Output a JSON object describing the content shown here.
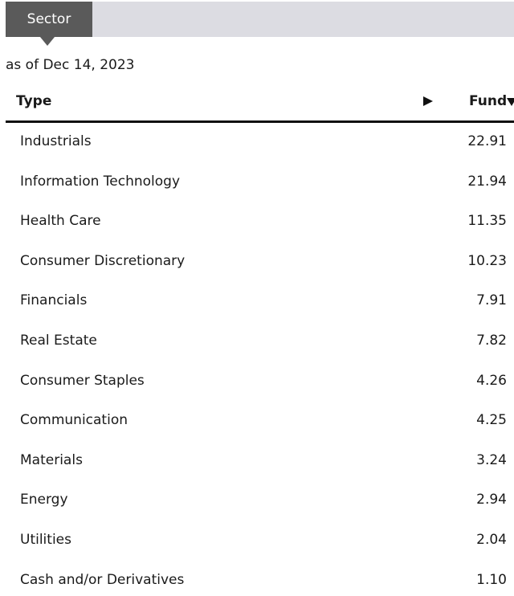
{
  "tab": {
    "label": "Sector"
  },
  "as_of": "as of Dec 14, 2023",
  "table": {
    "columns": [
      "Type",
      "Fund"
    ],
    "rows": [
      [
        "Industrials",
        "22.91"
      ],
      [
        "Information Technology",
        "21.94"
      ],
      [
        "Health Care",
        "11.35"
      ],
      [
        "Consumer Discretionary",
        "10.23"
      ],
      [
        "Financials",
        "7.91"
      ],
      [
        "Real Estate",
        "7.82"
      ],
      [
        "Consumer Staples",
        "4.26"
      ],
      [
        "Communication",
        "4.25"
      ],
      [
        "Materials",
        "3.24"
      ],
      [
        "Energy",
        "2.94"
      ],
      [
        "Utilities",
        "2.04"
      ],
      [
        "Cash and/or Derivatives",
        "1.10"
      ]
    ]
  }
}
